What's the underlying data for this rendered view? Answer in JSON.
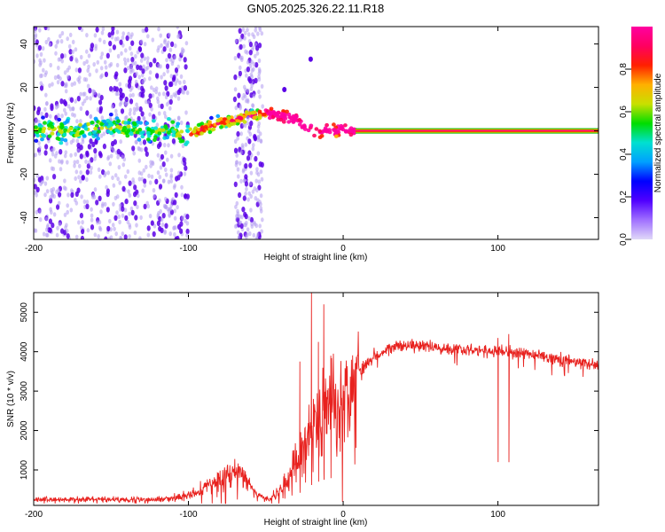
{
  "title": "GN05.2025.326.22.11.R18",
  "colors": {
    "snr_line": "#e8221f",
    "scatter_dark": "#5a00e6",
    "scatter_light": "#b39cf0",
    "cbar_stops": [
      "#e0d8f8",
      "#a070ff",
      "#5000ff",
      "#0000ff",
      "#00a0ff",
      "#00e0d0",
      "#00dd00",
      "#c8e000",
      "#ffb000",
      "#ff2000",
      "#ff0060",
      "#ff00a0"
    ]
  },
  "chart_data": [
    {
      "type": "scatter",
      "subtype": "spectrogram",
      "xlabel": "Height of straight line (km)",
      "ylabel": "Frequency (Hz)",
      "xlim": [
        -200,
        165
      ],
      "ylim": [
        -50,
        48
      ],
      "xticks": [
        -200,
        -100,
        0,
        100
      ],
      "yticks": [
        -40,
        -20,
        0,
        20,
        40
      ],
      "track": {
        "x": [
          -200,
          -170,
          -150,
          -130,
          -110,
          -100,
          -90,
          -80,
          -70,
          -60,
          -50,
          -40,
          -30,
          -25,
          -20,
          -15,
          -10,
          -5,
          0,
          5,
          10,
          165
        ],
        "y": [
          0,
          0,
          2,
          0,
          0,
          -2,
          1,
          4,
          5,
          7,
          8,
          7,
          5,
          2,
          0,
          -1,
          1,
          0,
          1,
          0,
          0,
          0
        ],
        "narrowband_from_x": 8,
        "narrowband_amplitude": 1.0
      },
      "noise_bands": [
        [
          -200,
          -100
        ],
        [
          -70,
          -52
        ]
      ],
      "colorbar": {
        "label": "Normalized spectral amplitude",
        "ticks": [
          0.0,
          0.2,
          0.4,
          0.6,
          0.8
        ],
        "range": [
          0,
          1
        ]
      }
    },
    {
      "type": "line",
      "xlabel": "Height of straight line (km)",
      "ylabel": "SNR (10 * v/v)",
      "xlim": [
        -200,
        165
      ],
      "ylim": [
        100,
        5500
      ],
      "xticks": [
        -200,
        -100,
        0,
        100
      ],
      "yticks": [
        1000,
        2000,
        3000,
        4000,
        5000
      ],
      "envelope": {
        "x": [
          -200,
          -120,
          -105,
          -95,
          -85,
          -75,
          -68,
          -62,
          -55,
          -48,
          -40,
          -35,
          -30,
          -25,
          -20,
          -15,
          -10,
          -5,
          0,
          5,
          10,
          20,
          30,
          40,
          50,
          60,
          80,
          100,
          120,
          140,
          165
        ],
        "y": [
          250,
          250,
          300,
          420,
          650,
          850,
          1000,
          700,
          350,
          240,
          500,
          800,
          1200,
          1700,
          2100,
          2400,
          2600,
          2700,
          2900,
          3200,
          3500,
          3900,
          4100,
          4150,
          4150,
          4100,
          4050,
          4000,
          3950,
          3800,
          3650
        ]
      },
      "spikes": [
        {
          "x": -20.5,
          "y": 5500
        },
        {
          "x": -12.5,
          "y": 5200
        },
        {
          "x": -28,
          "y": 3750
        },
        {
          "x": -16,
          "y": 4250
        },
        {
          "x": -8,
          "y": 3900
        },
        {
          "x": 107,
          "y": 4450
        },
        {
          "x": 100,
          "y": 4350
        }
      ]
    }
  ]
}
